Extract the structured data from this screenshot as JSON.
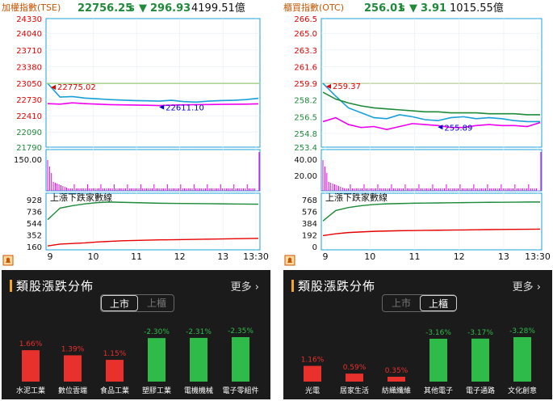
{
  "tse": {
    "header": {
      "name": "加權指數(TSE)",
      "price": "22756.25",
      "flag": "s",
      "change": "296.93",
      "change_arrow": "▼",
      "volume": "4199.51億"
    },
    "colors": {
      "price": "#1e8a3a",
      "change": "#1e8a3a",
      "name": "#cc5500"
    },
    "chart_data": {
      "type": "line",
      "title": "加權指數(TSE)",
      "x_ticks": [
        "9",
        "10",
        "11",
        "12",
        "13",
        "13:30"
      ],
      "price_axis_ticks": [
        24330,
        24040,
        23710,
        23380,
        23050,
        22730,
        22410,
        22090,
        21790
      ],
      "price_axis_colors": [
        "#e60000",
        "#e60000",
        "#e60000",
        "#e60000",
        "#e60000",
        "#e60000",
        "#e60000",
        "#1e8a3a",
        "#1e8a3a"
      ],
      "reference": 23050,
      "annotations": [
        {
          "text": "22775.02",
          "color": "#e60000"
        },
        {
          "text": "22611.10",
          "color": "#0000cc"
        }
      ],
      "series": [
        {
          "color": "#1aa0d8",
          "values": [
            23050,
            22780,
            22790,
            22760,
            22745,
            22730,
            22720,
            22710,
            22705,
            22700,
            22715,
            22690,
            22680,
            22700,
            22710,
            22716,
            22730,
            22756
          ]
        },
        {
          "color": "#ee00ee",
          "values": [
            22650,
            22640,
            22665,
            22650,
            22640,
            22630,
            22625,
            22622,
            22618,
            22612,
            22620,
            22625,
            22630,
            22632,
            22635,
            22637,
            22640,
            22645
          ]
        },
        {
          "color": "#a8d090",
          "values": [
            23050,
            23050
          ]
        }
      ],
      "volume_axis_ticks": [
        "150.00"
      ],
      "advance_decline_label": "上漲下跌家數線",
      "ad_axis_ticks": [
        928,
        736,
        544,
        352,
        160
      ],
      "ad_series": [
        {
          "color": "#1e8a3a",
          "values": [
            600,
            790,
            830,
            860,
            880,
            890,
            885,
            880,
            875,
            870,
            868,
            866,
            864,
            862,
            860,
            858,
            856,
            855
          ]
        },
        {
          "color": "#e60000",
          "values": [
            170,
            200,
            210,
            220,
            235,
            245,
            255,
            260,
            265,
            270,
            272,
            275,
            278,
            282,
            285,
            288,
            292,
            295
          ]
        }
      ]
    }
  },
  "otc": {
    "header": {
      "name": "櫃買指數(OTC)",
      "price": "256.01",
      "flag": "s",
      "change": "3.91",
      "change_arrow": "▼",
      "volume": "1015.55億"
    },
    "colors": {
      "price": "#1e8a3a",
      "change": "#1e8a3a",
      "name": "#cc5500"
    },
    "chart_data": {
      "type": "line",
      "title": "櫃買指數(OTC)",
      "x_ticks": [
        "9",
        "10",
        "11",
        "12",
        "13",
        "13:30"
      ],
      "price_axis_ticks": [
        266.5,
        265.0,
        263.3,
        261.6,
        259.9,
        258.2,
        256.5,
        254.8,
        253.4
      ],
      "price_axis_colors": [
        "#e60000",
        "#e60000",
        "#e60000",
        "#e60000",
        "#e60000",
        "#1e8a3a",
        "#1e8a3a",
        "#1e8a3a",
        "#1e8a3a"
      ],
      "reference": 259.9,
      "annotations": [
        {
          "text": "259.37",
          "color": "#e60000"
        },
        {
          "text": "255.89",
          "color": "#0000cc"
        }
      ],
      "series": [
        {
          "color": "#1aa0d8",
          "values": [
            259.9,
            258.6,
            257.4,
            256.9,
            256.4,
            256.3,
            256.7,
            256.5,
            256.2,
            256.1,
            256.4,
            256.5,
            256.3,
            256.4,
            256.3,
            256.1,
            256.0,
            256.0
          ]
        },
        {
          "color": "#ee00ee",
          "values": [
            256.0,
            256.4,
            255.7,
            255.4,
            255.5,
            255.2,
            255.5,
            255.8,
            255.7,
            255.6,
            255.4,
            255.4,
            255.6,
            255.7,
            255.6,
            255.6,
            255.5,
            255.9
          ]
        },
        {
          "color": "#1e8a3a",
          "values": [
            259.0,
            258.3,
            257.9,
            257.6,
            257.4,
            257.3,
            257.2,
            257.1,
            257.0,
            257.0,
            256.9,
            256.9,
            256.9,
            256.8,
            256.8,
            256.8,
            256.7,
            256.7
          ]
        }
      ],
      "volume_axis_ticks": [
        "40.00",
        "20.00"
      ],
      "advance_decline_label": "上漲下跌家數線",
      "ad_axis_ticks": [
        768,
        576,
        384,
        192,
        0
      ],
      "ad_series": [
        {
          "color": "#1e8a3a",
          "values": [
            420,
            590,
            640,
            670,
            690,
            700,
            705,
            710,
            712,
            715,
            718,
            720,
            722,
            725,
            726,
            728,
            730,
            730
          ]
        },
        {
          "color": "#e60000",
          "values": [
            180,
            210,
            230,
            240,
            250,
            255,
            260,
            262,
            265,
            268,
            270,
            272,
            275,
            278,
            280,
            282,
            284,
            285
          ]
        }
      ]
    }
  },
  "sectors_left": {
    "title": "類股漲跌分佈",
    "more": "更多",
    "tab_active": "上市",
    "tab_inactive": "上櫃",
    "chart_data": {
      "type": "bar",
      "categories": [
        "水泥工業",
        "數位雲端",
        "食品工業",
        "塑膠工業",
        "電機機械",
        "電子零組件"
      ],
      "values": [
        1.66,
        1.39,
        1.15,
        -2.3,
        -2.31,
        -2.35
      ],
      "labels": [
        "1.66%",
        "1.39%",
        "1.15%",
        "-2.30%",
        "-2.31%",
        "-2.35%"
      ]
    }
  },
  "sectors_right": {
    "title": "類股漲跌分佈",
    "more": "更多",
    "tab_active": "上櫃",
    "tab_inactive": "上市",
    "chart_data": {
      "type": "bar",
      "categories": [
        "光電",
        "居家生活",
        "紡織纖維",
        "其他電子",
        "電子通路",
        "文化創意"
      ],
      "values": [
        1.16,
        0.59,
        0.35,
        -3.16,
        -3.17,
        -3.28
      ],
      "labels": [
        "1.16%",
        "0.59%",
        "0.35%",
        "-3.16%",
        "-3.17%",
        "-3.28%"
      ]
    }
  },
  "icons": {
    "alert": "bell-icon",
    "more": "chevron-right-icon"
  }
}
